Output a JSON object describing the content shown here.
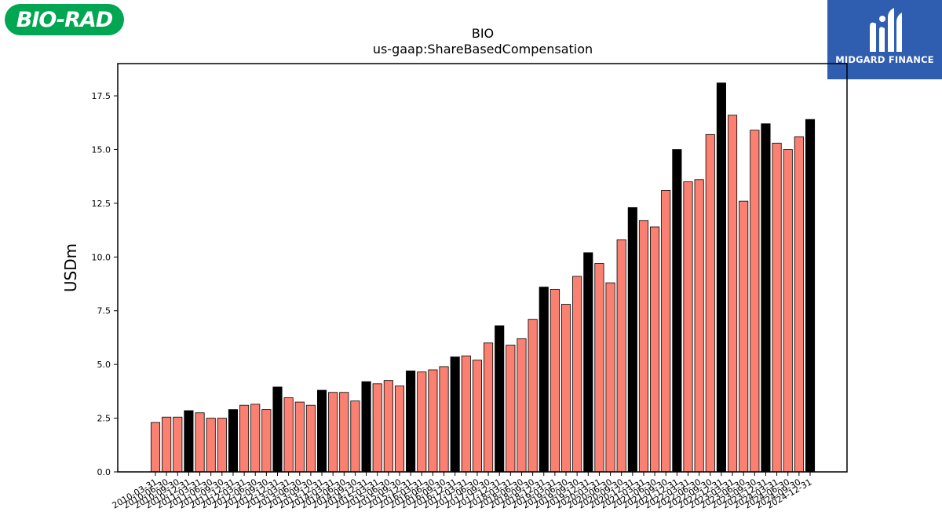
{
  "logos": {
    "left_text": "BIO-RAD",
    "right_text": "MIDGARD FINANCE"
  },
  "chart_data": {
    "type": "bar",
    "title": "BIO",
    "subtitle": "us-gaap:ShareBasedCompensation",
    "xlabel": "",
    "ylabel": "USDm",
    "ylim": [
      0,
      19
    ],
    "yticks": [
      "0.0",
      "2.5",
      "5.0",
      "7.5",
      "10.0",
      "12.5",
      "15.0",
      "17.5"
    ],
    "grid": false,
    "legend": "none",
    "colors": {
      "quarter": "#fa8072",
      "annual": "#000000",
      "edge": "#000000"
    },
    "categories": [
      "2010-03-31",
      "2010-06-30",
      "2010-09-30",
      "2010-12-31",
      "2011-03-31",
      "2011-06-30",
      "2011-09-30",
      "2011-12-31",
      "2012-03-31",
      "2012-06-30",
      "2012-09-30",
      "2012-12-31",
      "2013-03-31",
      "2013-06-30",
      "2013-09-30",
      "2013-12-31",
      "2014-03-31",
      "2014-06-30",
      "2014-09-30",
      "2014-12-31",
      "2015-03-31",
      "2015-06-30",
      "2015-09-30",
      "2015-12-31",
      "2016-03-31",
      "2016-06-30",
      "2016-09-30",
      "2016-12-31",
      "2017-03-31",
      "2017-06-30",
      "2017-09-30",
      "2017-12-31",
      "2018-03-31",
      "2018-06-30",
      "2018-09-30",
      "2018-12-31",
      "2019-03-31",
      "2019-06-30",
      "2019-09-30",
      "2019-12-31",
      "2020-03-31",
      "2020-06-30",
      "2020-09-30",
      "2020-12-31",
      "2021-03-31",
      "2021-06-30",
      "2021-09-30",
      "2021-12-31",
      "2022-03-31",
      "2022-06-30",
      "2022-09-30",
      "2022-12-31",
      "2023-03-31",
      "2023-06-30",
      "2023-09-30",
      "2023-12-31",
      "2024-03-31",
      "2024-06-30",
      "2024-09-30",
      "2024-12-31"
    ],
    "values": [
      2.3,
      2.55,
      2.55,
      2.85,
      2.75,
      2.5,
      2.5,
      2.9,
      3.1,
      3.15,
      2.9,
      3.95,
      3.45,
      3.25,
      3.1,
      3.8,
      3.7,
      3.7,
      3.3,
      4.2,
      4.1,
      4.25,
      4.0,
      4.7,
      4.65,
      4.75,
      4.9,
      5.35,
      5.4,
      5.2,
      6.0,
      6.8,
      5.9,
      6.2,
      7.1,
      8.6,
      8.5,
      7.8,
      9.1,
      10.2,
      9.7,
      8.8,
      10.8,
      12.3,
      11.7,
      11.4,
      13.1,
      15.0,
      13.5,
      13.6,
      15.7,
      18.1,
      16.6,
      12.6,
      15.9,
      16.2,
      15.3,
      15.0,
      15.6,
      16.4
    ]
  }
}
